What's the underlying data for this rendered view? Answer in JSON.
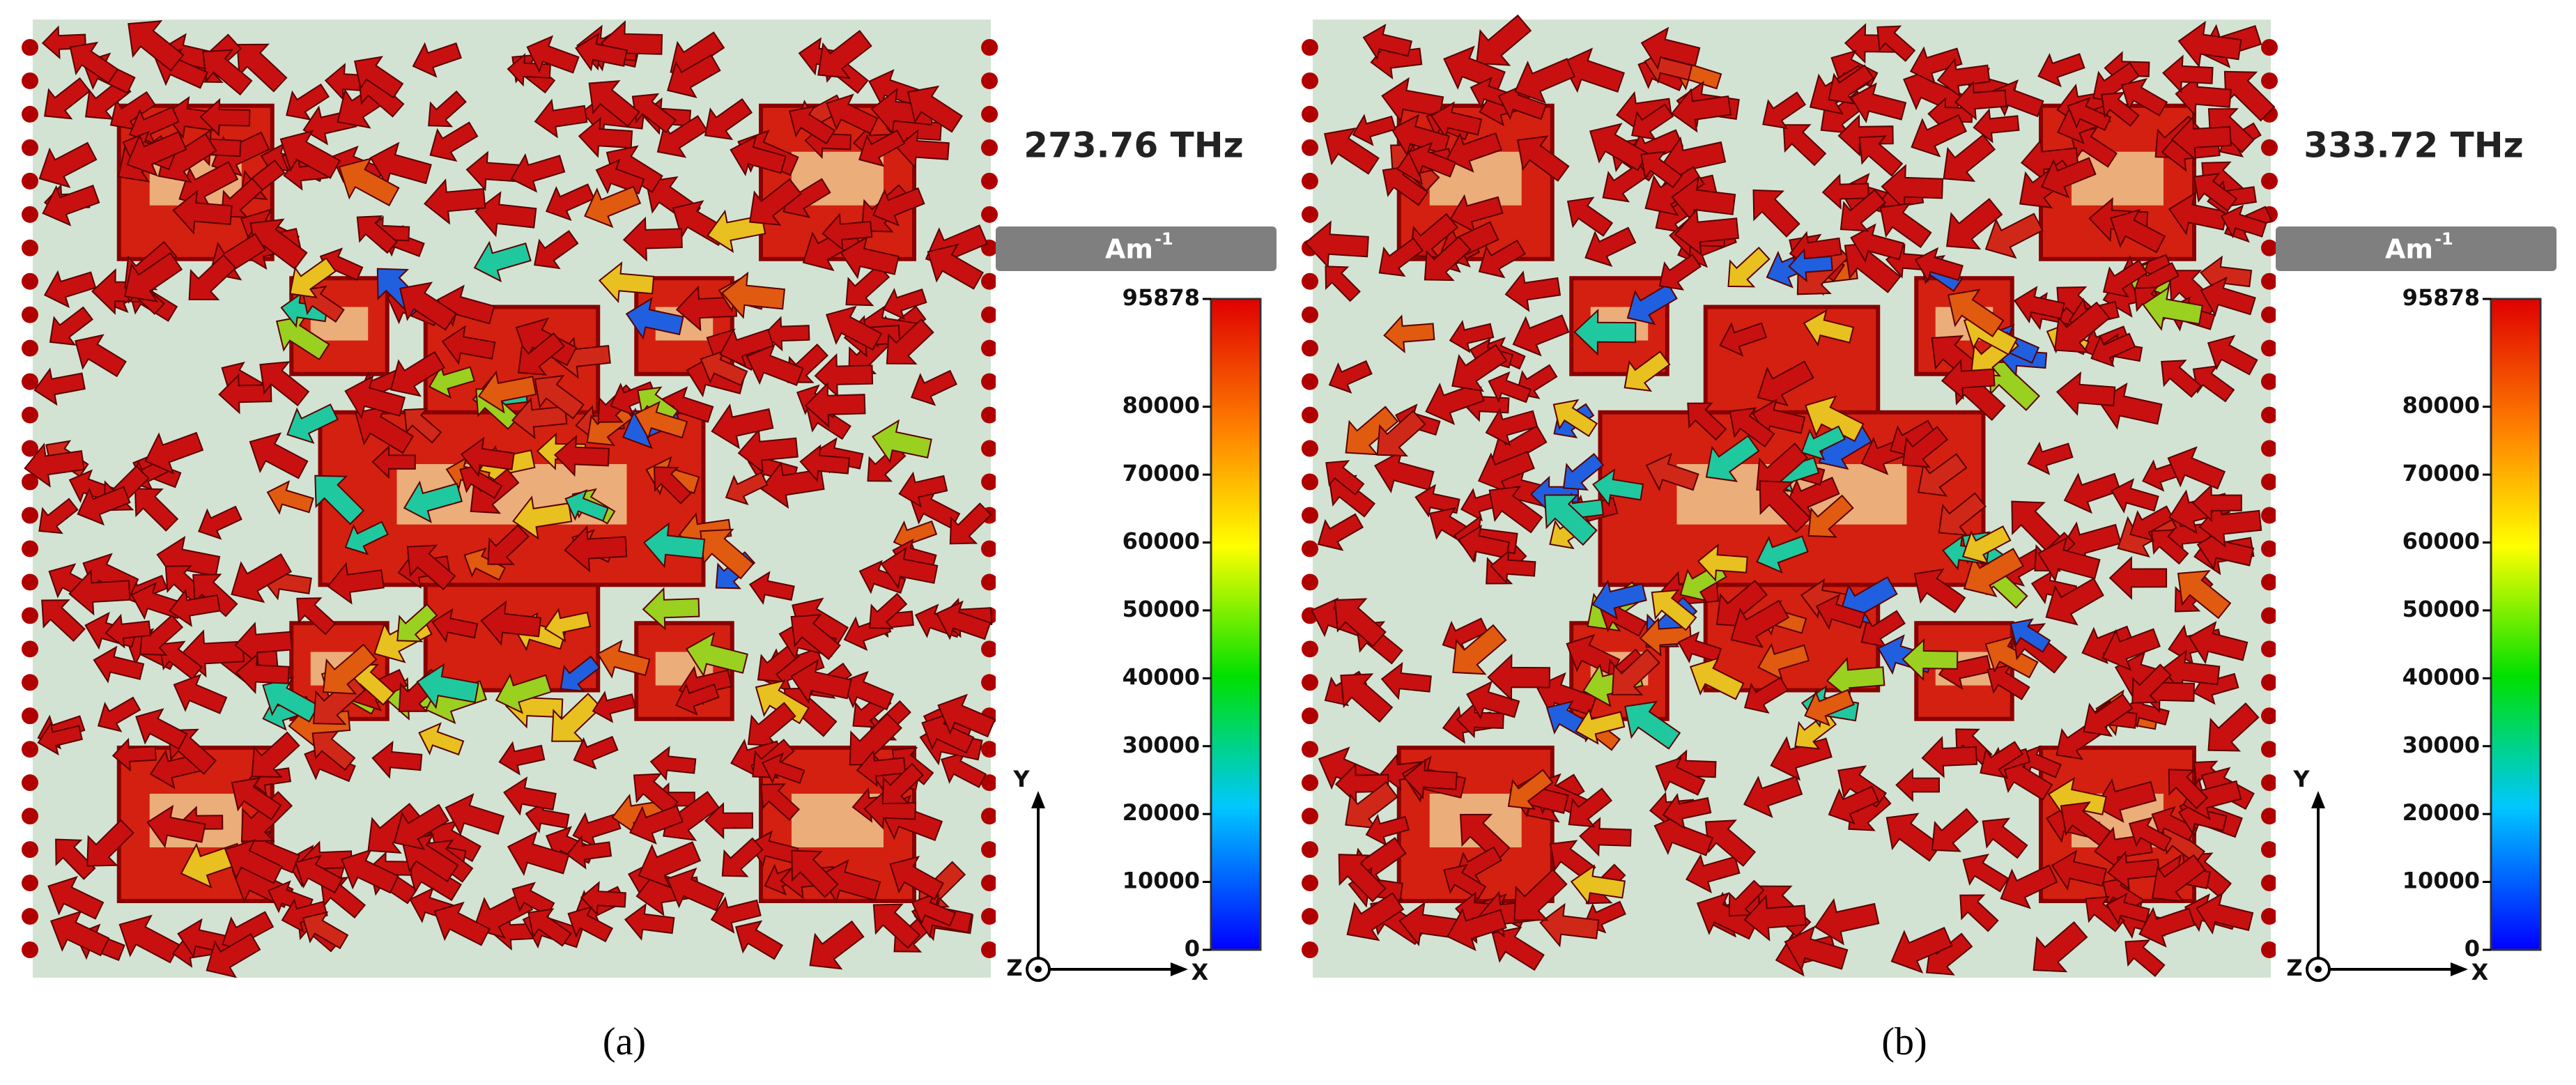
{
  "panels": [
    {
      "frequency": "273.76 THz",
      "unit": "Am",
      "unit_exponent": "-1",
      "colorbar": {
        "lim": [
          0,
          95878
        ],
        "ticks": [
          95878,
          80000,
          70000,
          60000,
          50000,
          40000,
          30000,
          20000,
          10000,
          0
        ]
      },
      "axes": {
        "y": "Y",
        "z": "Z",
        "x": "X"
      },
      "caption": "(a)"
    },
    {
      "frequency": "333.72 THz",
      "unit": "Am",
      "unit_exponent": "-1",
      "colorbar": {
        "lim": [
          0,
          95878
        ],
        "ticks": [
          95878,
          80000,
          70000,
          60000,
          50000,
          40000,
          30000,
          20000,
          10000,
          0
        ]
      },
      "axes": {
        "y": "Y",
        "z": "Z",
        "x": "X"
      },
      "caption": "(b)"
    }
  ]
}
